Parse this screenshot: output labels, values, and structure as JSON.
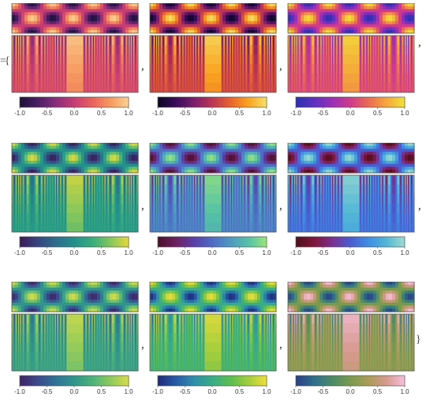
{
  "chart_data": [
    {
      "type": "heatmap",
      "palette": "magenta",
      "colors": [
        "#1d1138",
        "#4b1f66",
        "#8a2d7a",
        "#c53d73",
        "#e8625c",
        "#f6995f",
        "#fbd193"
      ],
      "legend": {
        "min": -1.0,
        "max": 1.0,
        "ticks": [
          "-1.0",
          "-0.5",
          "0.0",
          "0.5",
          "1.0"
        ]
      }
    },
    {
      "type": "heatmap",
      "palette": "inferno",
      "colors": [
        "#0b0724",
        "#3a0c5c",
        "#7b1d6c",
        "#bb3654",
        "#e8632c",
        "#f9a420",
        "#f5e26a"
      ],
      "legend": {
        "min": -1.0,
        "max": 1.0,
        "ticks": [
          "-1.0",
          "-0.5",
          "0.0",
          "0.5",
          "1.0"
        ]
      }
    },
    {
      "type": "heatmap",
      "palette": "plasma-like",
      "colors": [
        "#2a2fb0",
        "#5c31c0",
        "#9a2fb6",
        "#cf3a8c",
        "#ea6a52",
        "#f5a83a",
        "#f0e33a"
      ],
      "legend": {
        "min": -1.0,
        "max": 1.0,
        "ticks": [
          "-1.0",
          "-0.5",
          "0.0",
          "0.5",
          "1.0"
        ]
      }
    },
    {
      "type": "heatmap",
      "palette": "viridis",
      "colors": [
        "#3b1a58",
        "#36457f",
        "#2b6d8c",
        "#24908b",
        "#37ad7d",
        "#86c65b",
        "#e6d93a"
      ],
      "legend": {
        "min": -1.0,
        "max": 1.0,
        "ticks": [
          "-1.0",
          "-0.5",
          "0.0",
          "0.5",
          "1.0"
        ]
      }
    },
    {
      "type": "heatmap",
      "palette": "maroon-blue-green",
      "colors": [
        "#4a0f2a",
        "#6e2060",
        "#5b3fa8",
        "#4e6cc4",
        "#4d99c2",
        "#55c2a6",
        "#9be57a"
      ],
      "legend": {
        "min": -1.0,
        "max": 1.0,
        "ticks": [
          "-1.0",
          "-0.5",
          "0.0",
          "0.5",
          "1.0"
        ]
      }
    },
    {
      "type": "heatmap",
      "palette": "maroon-purple-blue",
      "colors": [
        "#4d0e1c",
        "#80163a",
        "#7a2f8f",
        "#4a5ccf",
        "#3f8ee3",
        "#52b7d6",
        "#9fdcd0"
      ],
      "legend": {
        "min": -1.0,
        "max": 1.0,
        "ticks": [
          "-1.0",
          "-0.5",
          "0.0",
          "0.5",
          "1.0"
        ]
      }
    },
    {
      "type": "heatmap",
      "palette": "purple-green-yellow",
      "colors": [
        "#3f2466",
        "#3b4a8b",
        "#2f7496",
        "#31958b",
        "#4db27a",
        "#8fc95d",
        "#d9dd49"
      ],
      "legend": {
        "min": -1.0,
        "max": 1.0,
        "ticks": [
          "-1.0",
          "-0.5",
          "0.0",
          "0.5",
          "1.0"
        ]
      }
    },
    {
      "type": "heatmap",
      "palette": "blue-green-yellow",
      "colors": [
        "#1d2b7a",
        "#275ba6",
        "#2f8fa9",
        "#39ac87",
        "#5cbd4f",
        "#a3cd3c",
        "#f0df3a"
      ],
      "legend": {
        "min": -1.0,
        "max": 1.0,
        "ticks": [
          "-1.0",
          "-0.5",
          "0.0",
          "0.5",
          "1.0"
        ]
      }
    },
    {
      "type": "heatmap",
      "palette": "teal-olive-pink",
      "colors": [
        "#2a3f86",
        "#2f6f8a",
        "#4b8a69",
        "#7a9a4f",
        "#a99c58",
        "#d69a8e",
        "#f6c0dc"
      ],
      "legend": {
        "min": -1.0,
        "max": 1.0,
        "ticks": [
          "-1.0",
          "-0.5",
          "0.0",
          "0.5",
          "1.0"
        ]
      }
    }
  ],
  "separators": {
    "comma": ",",
    "brace_left": "{",
    "brace_right": "}",
    "equals": "="
  }
}
